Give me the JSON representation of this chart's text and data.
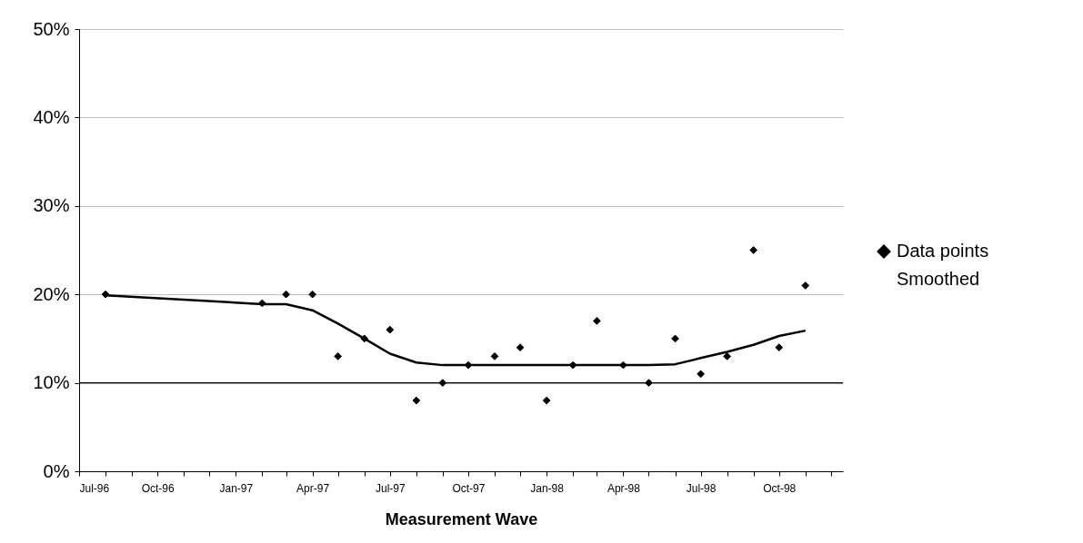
{
  "chart_data": {
    "type": "scatter",
    "xlabel": "Measurement Wave",
    "x": [
      "1996-08-01",
      "1997-02-01",
      "1997-03-01",
      "1997-04-01",
      "1997-05-01",
      "1997-06-01",
      "1997-07-01",
      "1997-08-01",
      "1997-09-01",
      "1997-10-01",
      "1997-11-01",
      "1997-12-01",
      "1998-01-01",
      "1998-02-01",
      "1998-03-01",
      "1998-04-01",
      "1998-05-01",
      "1998-06-01",
      "1998-07-01",
      "1998-08-01",
      "1998-09-01",
      "1998-10-01",
      "1998-11-01"
    ],
    "series": [
      {
        "name": "Data points",
        "marker": "diamond",
        "color": "#000000",
        "values": [
          20,
          19,
          20,
          20,
          13,
          15,
          16,
          8,
          10,
          12,
          13,
          14,
          8,
          12,
          17,
          12,
          10,
          15,
          11,
          13,
          25,
          14,
          21
        ]
      },
      {
        "name": "Smoothed",
        "type": "line",
        "marker": "none",
        "line_style": "solid",
        "color": "#000000",
        "values": [
          19.9,
          18.9,
          18.9,
          18.2,
          16.7,
          15,
          13.3,
          12.3,
          12,
          12,
          12,
          12,
          12,
          12,
          12,
          12,
          12,
          12.1,
          12.8,
          13.5,
          14.3,
          15.3,
          15.9
        ]
      }
    ],
    "xlim": [
      "1996-07-01",
      "1998-12-15"
    ],
    "xticks": [
      {
        "value": "1996-07-01",
        "label": "Jul-96"
      },
      {
        "value": "1996-08-01",
        "label": null
      },
      {
        "value": "1996-09-01",
        "label": null
      },
      {
        "value": "1996-10-01",
        "label": "Oct-96"
      },
      {
        "value": "1996-11-01",
        "label": null
      },
      {
        "value": "1996-12-01",
        "label": null
      },
      {
        "value": "1997-01-01",
        "label": "Jan-97"
      },
      {
        "value": "1997-02-01",
        "label": null
      },
      {
        "value": "1997-03-01",
        "label": null
      },
      {
        "value": "1997-04-01",
        "label": "Apr-97"
      },
      {
        "value": "1997-05-01",
        "label": null
      },
      {
        "value": "1997-06-01",
        "label": null
      },
      {
        "value": "1997-07-01",
        "label": "Jul-97"
      },
      {
        "value": "1997-08-01",
        "label": null
      },
      {
        "value": "1997-09-01",
        "label": null
      },
      {
        "value": "1997-10-01",
        "label": "Oct-97"
      },
      {
        "value": "1997-11-01",
        "label": null
      },
      {
        "value": "1997-12-01",
        "label": null
      },
      {
        "value": "1998-01-01",
        "label": "Jan-98"
      },
      {
        "value": "1998-02-01",
        "label": null
      },
      {
        "value": "1998-03-01",
        "label": null
      },
      {
        "value": "1998-04-01",
        "label": "Apr-98"
      },
      {
        "value": "1998-05-01",
        "label": null
      },
      {
        "value": "1998-06-01",
        "label": null
      },
      {
        "value": "1998-07-01",
        "label": "Jul-98"
      },
      {
        "value": "1998-08-01",
        "label": null
      },
      {
        "value": "1998-09-01",
        "label": null
      },
      {
        "value": "1998-10-01",
        "label": "Oct-98"
      },
      {
        "value": "1998-11-01",
        "label": null
      },
      {
        "value": "1998-12-01",
        "label": null
      }
    ],
    "ylim": [
      0,
      50
    ],
    "yticks": [
      {
        "value": 0,
        "label": "0%"
      },
      {
        "value": 10,
        "label": "10%"
      },
      {
        "value": 20,
        "label": "20%"
      },
      {
        "value": 30,
        "label": "30%"
      },
      {
        "value": 40,
        "label": "40%"
      },
      {
        "value": 50,
        "label": "50%"
      }
    ],
    "ref_lines": [
      {
        "axis": "y",
        "value": 10,
        "color": "#000000",
        "line_style": "solid"
      }
    ],
    "grid": "y",
    "legend": "right"
  }
}
